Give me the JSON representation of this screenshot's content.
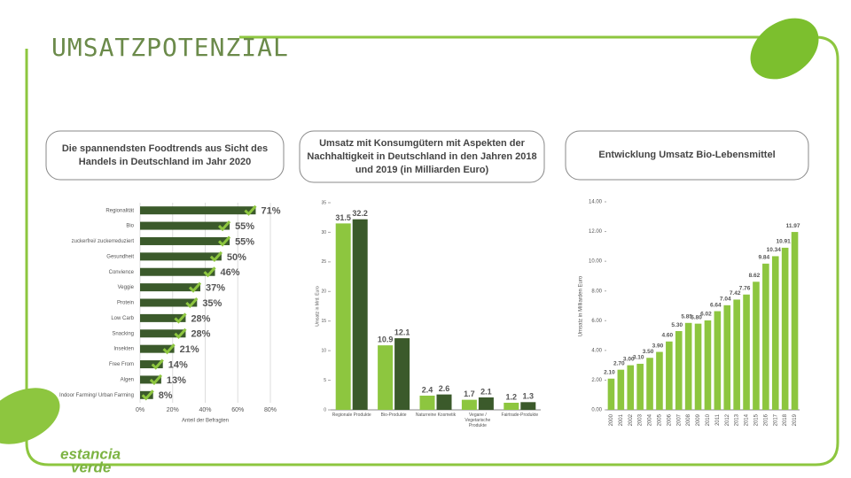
{
  "title": "UMSATZPOTENZIAL",
  "logo": [
    "estancia",
    "verde"
  ],
  "chart_data": [
    {
      "type": "hbar",
      "title": "Die spannendsten Foodtrends aus Sicht des Handels in Deutschland im Jahr 2020",
      "categories": [
        "Regionalität",
        "Bio",
        "zuckerfrei/ zuckerreduziert",
        "Gesundheit",
        "Convience",
        "Veggie",
        "Protein",
        "Low Carb",
        "Snacking",
        "Insekten",
        "Free From",
        "Algen",
        "Indoor Farming/ Urban Farming"
      ],
      "values": [
        71,
        55,
        55,
        50,
        46,
        37,
        35,
        28,
        28,
        21,
        14,
        13,
        8
      ],
      "value_labels": [
        "71%",
        "55%",
        "55%",
        "50%",
        "46%",
        "37%",
        "35%",
        "28%",
        "28%",
        "21%",
        "14%",
        "13%",
        "8%"
      ],
      "color": "#3b5a2b",
      "xlabel": "Anteil der Befragten",
      "xlim": [
        0,
        80
      ],
      "xticks": [
        {
          "value": 0,
          "label": "0%"
        },
        {
          "value": 20,
          "label": "20%"
        },
        {
          "value": 40,
          "label": "40%"
        },
        {
          "value": 60,
          "label": "60%"
        },
        {
          "value": 80,
          "label": "80%"
        }
      ],
      "grid": true
    },
    {
      "type": "groupbar",
      "title": "Umsatz mit Konsumgütern mit Aspekten der Nachhaltigkeit in Deutschland in den Jahren 2018 und 2019 (in Milliarden Euro)",
      "categories": [
        "Regionale Produkte",
        "Bio-Produkte",
        "Naturreine Kosmetik",
        "Vegane / Vegetarische Produkte",
        "Fairtrade-Produkte"
      ],
      "series": [
        {
          "color": "#8dc63f",
          "values": [
            31.5,
            10.9,
            2.4,
            1.7,
            1.2
          ]
        },
        {
          "color": "#3b5a2b",
          "values": [
            32.2,
            12.1,
            2.6,
            2.1,
            1.3
          ]
        }
      ],
      "ylabel": "Umsatz in Mrd. Euro",
      "ylim": [
        0,
        35
      ],
      "yticks": [
        0,
        5,
        10,
        15,
        20,
        25,
        30,
        35
      ]
    },
    {
      "type": "bar",
      "title": "Entwicklung Umsatz Bio-Lebensmittel",
      "categories": [
        "2000",
        "2001",
        "2002",
        "2003",
        "2004",
        "2005",
        "2006",
        "2007",
        "2008",
        "2009",
        "2010",
        "2011",
        "2012",
        "2013",
        "2014",
        "2015",
        "2016",
        "2017",
        "2018",
        "2019"
      ],
      "values": [
        2.1,
        2.7,
        3.0,
        3.1,
        3.5,
        3.9,
        4.6,
        5.3,
        5.85,
        5.8,
        6.02,
        6.64,
        7.04,
        7.42,
        7.76,
        8.62,
        9.84,
        10.34,
        10.91,
        11.97
      ],
      "value_labels": [
        "2.10",
        "2.70",
        "3.00",
        "3.10",
        "3.50",
        "3.90",
        "4.60",
        "5.30",
        "5.85",
        "5.80",
        "6.02",
        "6.64",
        "7.04",
        "7.42",
        "7.76",
        "8.62",
        "9.84",
        "10.34",
        "10.91",
        "11.97"
      ],
      "color": "#8dc63f",
      "ylabel": "Umsatz in Milliarden Euro",
      "ylim": [
        0,
        14
      ],
      "yticks": [
        {
          "value": 0,
          "label": "0.00"
        },
        {
          "value": 2,
          "label": "2.00"
        },
        {
          "value": 4,
          "label": "4.00"
        },
        {
          "value": 6,
          "label": "6.00"
        },
        {
          "value": 8,
          "label": "8.00"
        },
        {
          "value": 10,
          "label": "10.00"
        },
        {
          "value": 12,
          "label": "12.00"
        },
        {
          "value": 14,
          "label": "14.00"
        }
      ]
    }
  ]
}
